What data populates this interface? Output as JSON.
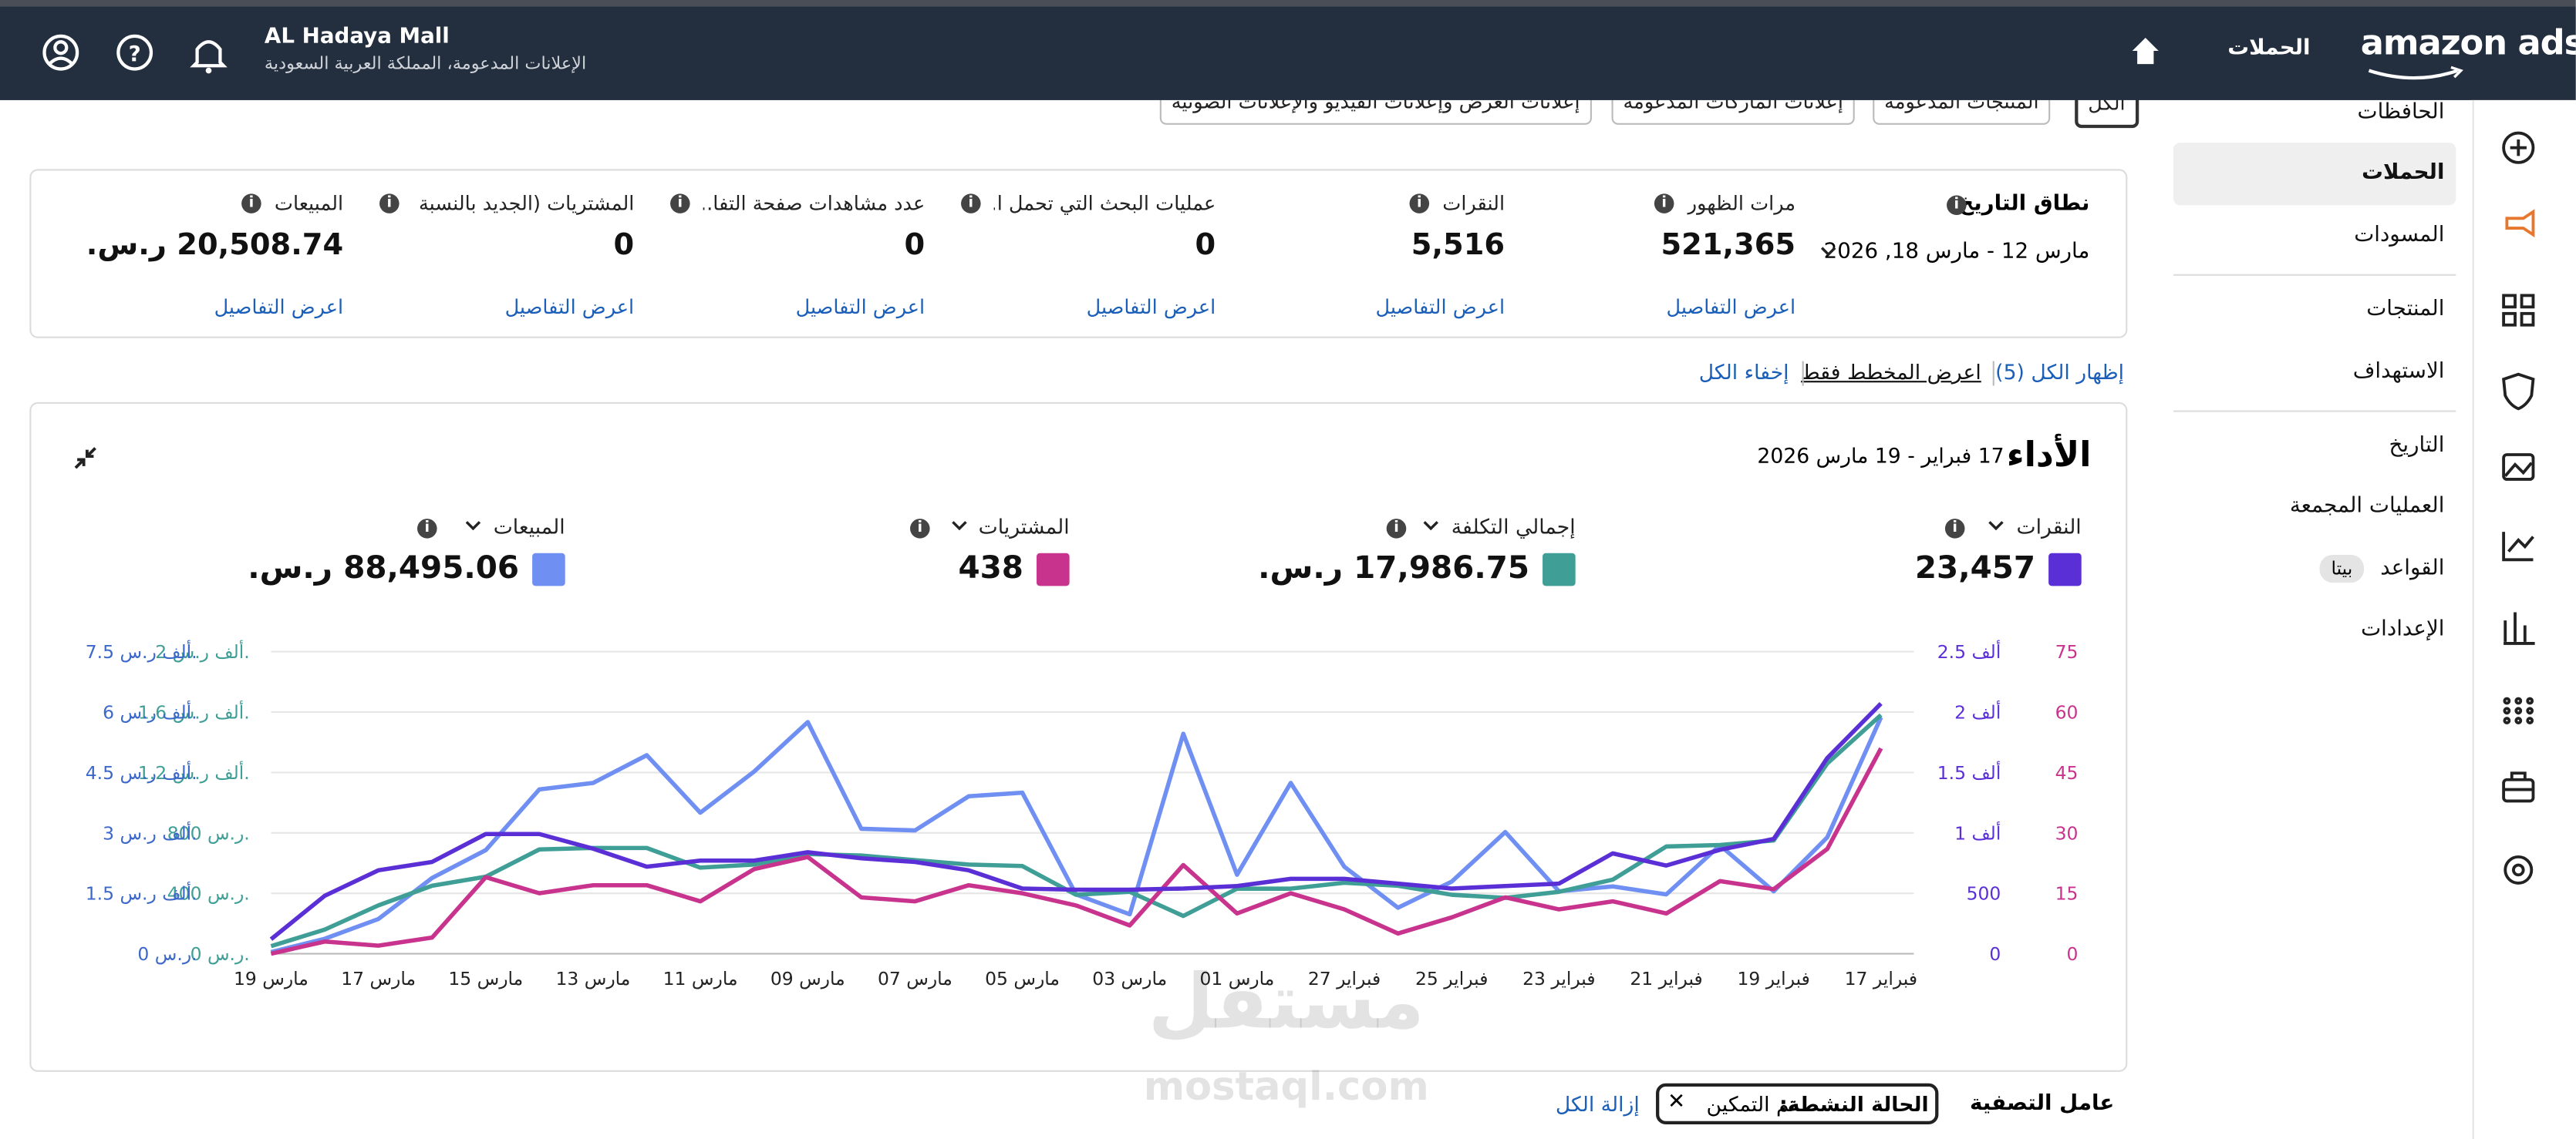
{
  "header": {
    "brand": "amazon ads",
    "nav": "الحملات",
    "account": "AL Hadaya Mall",
    "account_sub": "الإعلانات المدعومة، المملكة العربية السعودية"
  },
  "sidebar": {
    "items": [
      "الحافظات",
      "الحملات",
      "المسودات",
      "المنتجات",
      "الاستهداف",
      "التاريخ",
      "العمليات المجمعة",
      "القواعد",
      "الإعدادات"
    ],
    "beta": "بيتا"
  },
  "tabs": [
    "الكل",
    "المنتجات المدعومة",
    "إعلانات الماركات المدعومة",
    "إعلانات العرض وإعلانات الفيديو والإعلانات الصوتية"
  ],
  "summary": {
    "date_label": "نطاق التاريخ",
    "date_range": "مارس 12 - مارس 18, 2026",
    "metrics": [
      {
        "label": "مرات الظهور",
        "value": "521,365",
        "link": "اعرض التفاصيل"
      },
      {
        "label": "النقرات",
        "value": "5,516",
        "link": "اعرض التفاصيل"
      },
      {
        "label": "عمليات البحث التي تحمل ا...",
        "value": "0",
        "link": "اعرض التفاصيل"
      },
      {
        "label": "عدد مشاهدات صفحة التفا...",
        "value": "0",
        "link": "اعرض التفاصيل"
      },
      {
        "label": "المشتريات (الجديد بالنسبة لـ...",
        "value": "0",
        "link": "اعرض التفاصيل"
      },
      {
        "label": "المبيعات",
        "value": "20,508.74 ر.س.",
        "link": "اعرض التفاصيل"
      }
    ]
  },
  "toolbar": {
    "show_all": "إظهار الكل (5)",
    "chart_only": "اعرض المخطط فقط",
    "hide_all": "إخفاء الكل"
  },
  "performance": {
    "title": "الأداء",
    "range": "17 فبراير - 19 مارس 2026"
  },
  "chart_data": {
    "type": "line",
    "categories": [
      "فبراير 17",
      null,
      "فبراير 19",
      null,
      "فبراير 21",
      null,
      "فبراير 23",
      null,
      "فبراير 25",
      null,
      "فبراير 27",
      null,
      "مارس 01",
      null,
      "مارس 03",
      null,
      "مارس 05",
      null,
      "مارس 07",
      null,
      "مارس 09",
      null,
      "مارس 11",
      null,
      "مارس 13",
      null,
      "مارس 15",
      null,
      "مارس 17",
      null,
      "مارس 19"
    ],
    "grid": true,
    "series": [
      {
        "name": "النقرات",
        "total": "23,457",
        "color": "#5a2fd6",
        "ylim": [
          0,
          2500
        ],
        "yticks": [
          0,
          500,
          {
            "value": 1000,
            "label": "1 ألف"
          },
          {
            "value": 1500,
            "label": "1.5 ألف"
          },
          {
            "value": 2000,
            "label": "2 ألف"
          },
          {
            "value": 2500,
            "label": "2.5 ألف"
          }
        ],
        "values": [
          2070,
          1620,
          950,
          860,
          730,
          830,
          580,
          560,
          540,
          580,
          620,
          620,
          560,
          540,
          530,
          530,
          540,
          690,
          760,
          790,
          840,
          770,
          770,
          720,
          870,
          990,
          990,
          760,
          690,
          480,
          120
        ]
      },
      {
        "name": "إجمالي التكلفة",
        "total": "17,986.75 ر.س.",
        "color": "#3f9e96",
        "ylim": [
          0,
          2000
        ],
        "yticks": [
          {
            "value": 0,
            "label": "0 ر.س."
          },
          {
            "value": 400,
            "label": "400 ر.س."
          },
          {
            "value": 800,
            "label": "800 ر.س."
          },
          {
            "value": 1200,
            "label": "1.2 ألف ر.س."
          },
          {
            "value": 1600,
            "label": "1.6 ألف ر.س."
          },
          {
            "value": 2000,
            "label": "2 ألف ر.س."
          }
        ],
        "values": [
          1580,
          1260,
          750,
          720,
          710,
          490,
          410,
          370,
          390,
          450,
          470,
          430,
          430,
          250,
          410,
          390,
          580,
          590,
          620,
          650,
          660,
          590,
          570,
          700,
          700,
          690,
          510,
          450,
          320,
          160,
          50
        ]
      },
      {
        "name": "المشتريات",
        "total": "438",
        "color": "#c8338e",
        "ylim": [
          0,
          75
        ],
        "yticks": [
          0,
          15,
          30,
          45,
          60,
          75
        ],
        "values": [
          51,
          26,
          16,
          18,
          10,
          13,
          11,
          14,
          9,
          5,
          11,
          15,
          10,
          22,
          7,
          12,
          15,
          17,
          13,
          14,
          24,
          21,
          13,
          17,
          17,
          15,
          19,
          4,
          2,
          3,
          0
        ]
      },
      {
        "name": "المبيعات",
        "total": "88,495.06 ر.س.",
        "color": "#6f8ff2",
        "ylim": [
          0,
          7500
        ],
        "yticks": [
          {
            "value": 0,
            "label": "0 ر.س."
          },
          {
            "value": 1500,
            "label": "1.5 ألف ر.س."
          },
          {
            "value": 3000,
            "label": "3 ألف ر.س."
          },
          {
            "value": 4500,
            "label": "4.5 ألف ر.س."
          },
          {
            "value": 6000,
            "label": "6 ألف ر.س."
          },
          {
            "value": 7500,
            "label": "7.5 ألف ر.س."
          }
        ],
        "values": [
          5870,
          2890,
          1550,
          2690,
          1470,
          1670,
          1550,
          3020,
          1790,
          1140,
          2160,
          4240,
          1960,
          5460,
          980,
          1470,
          4000,
          3910,
          3060,
          3100,
          5750,
          4520,
          3500,
          4930,
          4240,
          4080,
          2570,
          1880,
          860,
          370,
          40
        ]
      }
    ]
  },
  "filter": {
    "label": "عامل التصفية",
    "chip_key": "الحالة النشطة:",
    "chip_value": "تم التمكين",
    "clear": "إزالة الكل"
  },
  "watermark": [
    "مستقل",
    "mostaql.com"
  ]
}
